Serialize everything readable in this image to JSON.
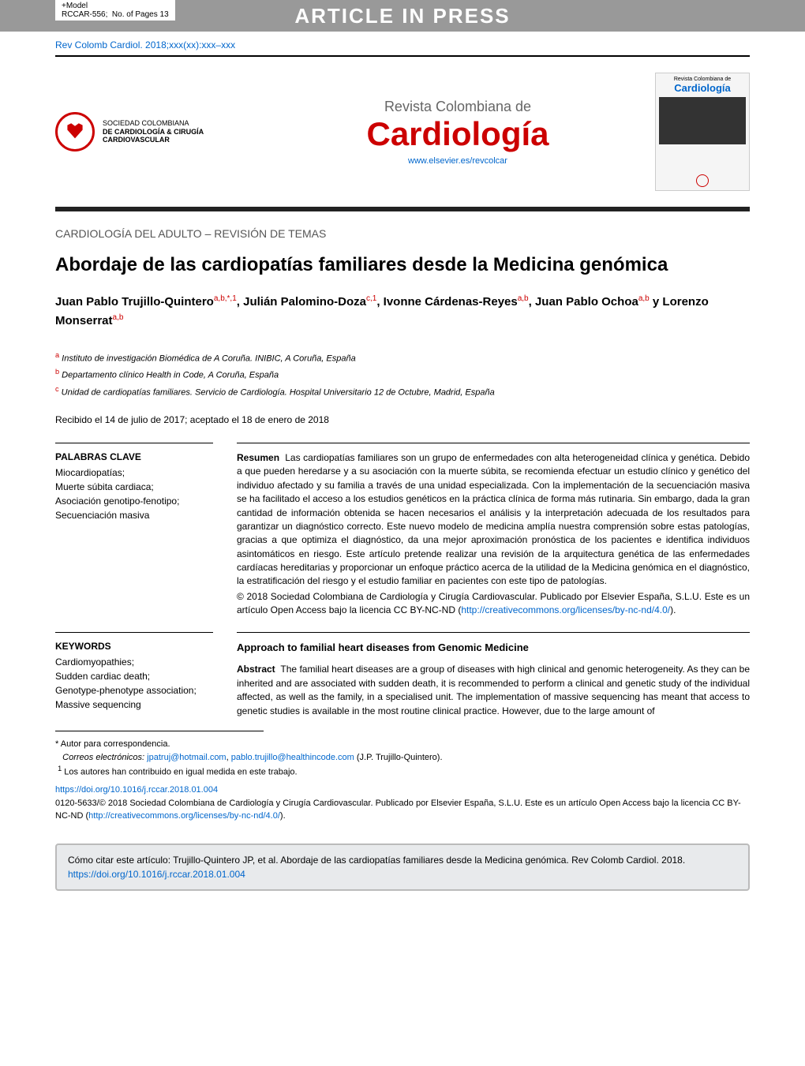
{
  "header": {
    "model_label": "+Model",
    "code_label": "RCCAR-556;",
    "pages_label": "No. of Pages 13",
    "banner": "ARTICLE IN PRESS",
    "citation": "Rev Colomb Cardiol. 2018;xxx(xx):xxx–xxx"
  },
  "masthead": {
    "society_line1": "SOCIEDAD COLOMBIANA",
    "society_line2": "DE CARDIOLOGÍA & CIRUGÍA",
    "society_line3": "CARDIOVASCULAR",
    "journal_supertitle": "Revista Colombiana de",
    "journal_title": "Cardiología",
    "journal_url": "www.elsevier.es/revcolcar",
    "cover_supertitle": "Revista Colombiana de",
    "cover_title": "Cardiología"
  },
  "article": {
    "section": "CARDIOLOGÍA DEL ADULTO – REVISIÓN DE TEMAS",
    "title": "Abordaje de las cardiopatías familiares desde la Medicina genómica",
    "authors_html": "Juan Pablo Trujillo-Quintero<sup>a,b,*,1</sup>, Julián Palomino-Doza<sup>c,1</sup>, Ivonne Cárdenas-Reyes<sup>a,b</sup>, Juan Pablo Ochoa<sup>a,b</sup> y Lorenzo Monserrat<sup>a,b</sup>",
    "affil_a": "Instituto de investigación Biomédica de A Coruña. INIBIC, A Coruña, España",
    "affil_b": "Departamento clínico Health in Code, A Coruña, España",
    "affil_c": "Unidad de cardiopatías familiares. Servicio de Cardiología. Hospital Universitario 12 de Octubre, Madrid, España",
    "dates": "Recibido el 14 de julio de 2017; aceptado el 18 de enero de 2018"
  },
  "keywords_es": {
    "heading": "PALABRAS CLAVE",
    "list": "Miocardiopatías;\nMuerte súbita cardiaca;\nAsociación genotipo-fenotipo;\nSecuenciación masiva"
  },
  "abstract_es": {
    "heading": "Resumen",
    "body": "Las cardiopatías familiares son un grupo de enfermedades con alta heterogeneidad clínica y genética. Debido a que pueden heredarse y a su asociación con la muerte súbita, se recomienda efectuar un estudio clínico y genético del individuo afectado y su familia a través de una unidad especializada. Con la implementación de la secuenciación masiva se ha facilitado el acceso a los estudios genéticos en la práctica clínica de forma más rutinaria. Sin embargo, dada la gran cantidad de información obtenida se hacen necesarios el análisis y la interpretación adecuada de los resultados para garantizar un diagnóstico correcto. Este nuevo modelo de medicina amplía nuestra comprensión sobre estas patologías, gracias a que optimiza el diagnóstico, da una mejor aproximación pronóstica de los pacientes e identifica individuos asintomáticos en riesgo. Este artículo pretende realizar una revisión de la arquitectura genética de las enfermedades cardíacas hereditarias y proporcionar un enfoque práctico acerca de la utilidad de la Medicina genómica en el diagnóstico, la estratificación del riesgo y el estudio familiar en pacientes con este tipo de patologías.",
    "copyright": "© 2018 Sociedad Colombiana de Cardiología y Cirugía Cardiovascular. Publicado por Elsevier España, S.L.U. Este es un artículo Open Access bajo la licencia CC BY-NC-ND (",
    "license_url": "http://creativecommons.org/licenses/by-nc-nd/4.0/",
    "copyright_end": ")."
  },
  "keywords_en": {
    "heading": "KEYWORDS",
    "list": "Cardiomyopathies;\nSudden cardiac death;\nGenotype-phenotype association;\nMassive sequencing"
  },
  "abstract_en": {
    "title": "Approach to familial heart diseases from Genomic Medicine",
    "heading": "Abstract",
    "body": "The familial heart diseases are a group of diseases with high clinical and genomic heterogeneity. As they can be inherited and are associated with sudden death, it is recommended to perform a clinical and genetic study of the individual affected, as well as the family, in a specialised unit. The implementation of massive sequencing has meant that access to genetic studies is available in the most routine clinical practice. However, due to the large amount of"
  },
  "footer": {
    "corr": "Autor para correspondencia.",
    "emails_label": "Correos electrónicos:",
    "email1": "jpatruj@hotmail.com",
    "email2": "pablo.trujillo@healthincode.com",
    "corr_name": "(J.P. Trujillo-Quintero).",
    "note1": "Los autores han contribuido en igual medida en este trabajo.",
    "doi": "https://doi.org/10.1016/j.rccar.2018.01.004",
    "issn_copy": "0120-5633/© 2018 Sociedad Colombiana de Cardiología y Cirugía Cardiovascular. Publicado por Elsevier España, S.L.U. Este es un artículo Open Access bajo la licencia CC BY-NC-ND (",
    "license_url": "http://creativecommons.org/licenses/by-nc-nd/4.0/",
    "issn_end": ")."
  },
  "citebox": {
    "text": "Cómo citar este artículo: Trujillo-Quintero JP, et al. Abordaje de las cardiopatías familiares desde la Medicina genómica. Rev Colomb Cardiol. 2018. ",
    "doi": "https://doi.org/10.1016/j.rccar.2018.01.004"
  },
  "colors": {
    "banner_bg": "#999999",
    "accent_red": "#cc0000",
    "link_blue": "#0066cc",
    "dark_bar": "#222222",
    "citebox_bg": "#e8eaec",
    "citebox_border": "#bbbbbb"
  }
}
